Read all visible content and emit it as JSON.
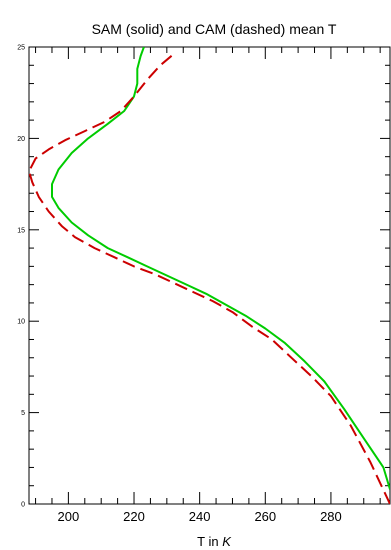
{
  "chart_data": {
    "type": "line",
    "title": "SAM (solid) and CAM (dashed) mean T",
    "xlabel_prefix": "T in ",
    "xlabel_unit": "K",
    "ylabel": "",
    "xlim": [
      188,
      298
    ],
    "ylim": [
      0,
      25
    ],
    "x_ticks": [
      200,
      220,
      240,
      260,
      280
    ],
    "y_ticks": [
      0,
      5,
      10,
      15,
      20,
      25
    ],
    "x_minor_step": 5,
    "y_minor_step": 1,
    "grid": false,
    "series": [
      {
        "style": "solid",
        "color": "#00cc00",
        "x": [
          298,
          296,
          290,
          284,
          278,
          272,
          266,
          260,
          254,
          248,
          242,
          236,
          230,
          224,
          218,
          212,
          206,
          201,
          197,
          195,
          195,
          197,
          201,
          206,
          212,
          217,
          220,
          221,
          221,
          222,
          223
        ],
        "y": [
          0.8,
          2.0,
          3.6,
          5.2,
          6.7,
          7.8,
          8.8,
          9.6,
          10.3,
          10.9,
          11.5,
          12.0,
          12.5,
          13.0,
          13.5,
          14.0,
          14.7,
          15.4,
          16.2,
          16.8,
          17.5,
          18.3,
          19.2,
          20.0,
          20.8,
          21.5,
          22.3,
          23.0,
          23.8,
          24.5,
          25.0
        ]
      },
      {
        "style": "dashed",
        "color": "#cc0000",
        "x": [
          298,
          292,
          286,
          280,
          274,
          268,
          262,
          256,
          250,
          244,
          238,
          232,
          226,
          220,
          214,
          208,
          202,
          198,
          194,
          191,
          189,
          188,
          190,
          194,
          199,
          205,
          211,
          216,
          220,
          224,
          228,
          232
        ],
        "y": [
          0.0,
          2.3,
          4.3,
          5.9,
          7.0,
          8.0,
          9.0,
          9.7,
          10.5,
          11.1,
          11.6,
          12.1,
          12.6,
          13.0,
          13.5,
          14.0,
          14.6,
          15.2,
          16.0,
          16.8,
          17.6,
          18.2,
          18.9,
          19.4,
          19.9,
          20.4,
          20.9,
          21.5,
          22.3,
          23.2,
          24.0,
          24.6
        ]
      }
    ]
  }
}
